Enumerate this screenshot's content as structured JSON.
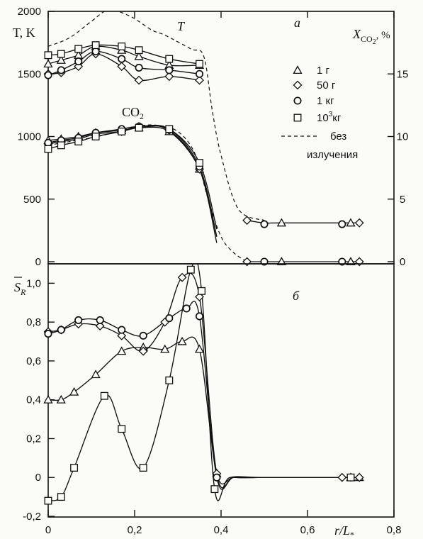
{
  "chart_data": [
    {
      "type": "line",
      "panel_label": "a",
      "x_range": [
        0,
        0.8
      ],
      "ylim_left": [
        0,
        2000
      ],
      "ylim_right": [
        0,
        20
      ],
      "ylabel_left": "T, K",
      "ylabel_right_main": "X",
      "ylabel_right_sub": "CO",
      "ylabel_right_subsub": "2",
      "ylabel_right_unit": ", %",
      "yticks_left": [
        0,
        500,
        1000,
        1500,
        2000
      ],
      "yticks_right": [
        0,
        5,
        10,
        15
      ],
      "curve_label_T": "T",
      "curve_label_CO2_main": "CO",
      "curve_label_CO2_sub": "2",
      "legend": [
        {
          "main": "1",
          "rest": " г",
          "sup": "",
          "after": "",
          "marker": "triangle"
        },
        {
          "main": "50",
          "rest": " г",
          "sup": "",
          "after": "",
          "marker": "diamond"
        },
        {
          "main": "1",
          "rest": " кг",
          "sup": "",
          "after": "",
          "marker": "circle"
        },
        {
          "main": "10",
          "rest": "",
          "sup": "3",
          "after": "кг",
          "marker": "square"
        },
        {
          "main": "без",
          "rest": "",
          "sup": "",
          "after": "",
          "marker": "dashed"
        },
        {
          "main": "излучения",
          "rest": "",
          "sup": "",
          "after": "",
          "marker": "none"
        }
      ],
      "series": [
        {
          "name": "T 1 г",
          "marker": "triangle",
          "axis": "left",
          "x": [
            0,
            0.03,
            0.07,
            0.11,
            0.17,
            0.21,
            0.28,
            0.35
          ],
          "y": [
            1580,
            1610,
            1650,
            1720,
            1690,
            1640,
            1570,
            1570
          ]
        },
        {
          "name": "T 50 г",
          "marker": "diamond",
          "axis": "left",
          "x": [
            0,
            0.03,
            0.07,
            0.11,
            0.17,
            0.21,
            0.28,
            0.35
          ],
          "y": [
            1500,
            1510,
            1560,
            1660,
            1560,
            1450,
            1480,
            1450
          ]
        },
        {
          "name": "T 1 кг",
          "marker": "circle",
          "axis": "left",
          "x": [
            0,
            0.03,
            0.07,
            0.11,
            0.17,
            0.21,
            0.28,
            0.35
          ],
          "y": [
            1490,
            1530,
            1600,
            1680,
            1620,
            1550,
            1530,
            1500
          ]
        },
        {
          "name": "T 10^3 кг",
          "marker": "square",
          "axis": "left",
          "x": [
            0,
            0.03,
            0.07,
            0.11,
            0.17,
            0.21,
            0.28,
            0.35
          ],
          "y": [
            1650,
            1660,
            1700,
            1730,
            1720,
            1690,
            1620,
            1580
          ]
        },
        {
          "name": "T без излучения",
          "marker": "dashed",
          "axis": "left",
          "x": [
            0,
            0.05,
            0.1,
            0.14,
            0.19,
            0.24,
            0.27,
            0.33,
            0.36,
            0.38,
            0.4,
            0.44,
            0.5
          ],
          "y": [
            1720,
            1790,
            1920,
            2010,
            1960,
            1850,
            1810,
            1700,
            1640,
            1200,
            850,
            420,
            330
          ]
        },
        {
          "name": "CO2 1 г",
          "marker": "triangle",
          "axis": "right",
          "x": [
            0,
            0.03,
            0.07,
            0.11,
            0.17,
            0.21,
            0.28,
            0.35,
            0.39
          ],
          "y": [
            9.7,
            9.8,
            10.0,
            10.3,
            10.5,
            10.7,
            10.4,
            7.4,
            2.0
          ]
        },
        {
          "name": "CO2 50 г",
          "marker": "diamond",
          "axis": "right",
          "x": [
            0,
            0.03,
            0.07,
            0.11,
            0.17,
            0.21,
            0.28,
            0.35,
            0.39
          ],
          "y": [
            9.4,
            9.6,
            9.8,
            10.2,
            10.4,
            10.8,
            10.5,
            7.4,
            1.5
          ]
        },
        {
          "name": "CO2 1 кг",
          "marker": "circle",
          "axis": "right",
          "x": [
            0,
            0.03,
            0.07,
            0.11,
            0.17,
            0.21,
            0.28,
            0.35,
            0.39
          ],
          "y": [
            9.5,
            9.7,
            9.9,
            10.3,
            10.6,
            10.8,
            10.6,
            7.6,
            2.0
          ]
        },
        {
          "name": "CO2 10^3 кг",
          "marker": "square",
          "axis": "right",
          "x": [
            0,
            0.03,
            0.07,
            0.11,
            0.17,
            0.21,
            0.28,
            0.35,
            0.39
          ],
          "y": [
            9.0,
            9.3,
            9.6,
            10.0,
            10.4,
            10.7,
            10.6,
            7.9,
            2.6
          ]
        },
        {
          "name": "CO2 без излучения",
          "marker": "dashed",
          "axis": "right",
          "x": [
            0,
            0.05,
            0.1,
            0.15,
            0.2,
            0.25,
            0.3,
            0.34,
            0.37,
            0.4,
            0.43,
            0.46
          ],
          "y": [
            9.3,
            9.6,
            9.9,
            10.3,
            10.8,
            10.9,
            10.4,
            8.6,
            5.0,
            2.0,
            0.7,
            0.0
          ]
        }
      ],
      "T_tail": {
        "x": [
          0.46,
          0.5,
          0.54,
          0.68,
          0.7,
          0.72
        ],
        "y": [
          330,
          310,
          310,
          310,
          310,
          310
        ]
      },
      "CO2_tail": {
        "x": [
          0.46,
          0.5,
          0.54,
          0.68,
          0.7,
          0.72
        ],
        "y": [
          0,
          0,
          0,
          0,
          0,
          0
        ]
      }
    },
    {
      "type": "line",
      "panel_label": "б",
      "x_range": [
        0,
        0.8
      ],
      "ylim": [
        -0.2,
        1.1
      ],
      "ylabel_main": "S",
      "ylabel_sub": "R",
      "yticks": [
        -0.2,
        0,
        0.2,
        0.4,
        0.6,
        0.8,
        1.0
      ],
      "ytick_labels": [
        "-0,2",
        "0",
        "0,2",
        "0,4",
        "0,6",
        "0,8",
        "1,0"
      ],
      "xticks": [
        0,
        0.2,
        0.4,
        0.6,
        0.8
      ],
      "xtick_labels": [
        "0",
        "0,2",
        "0,4",
        "0,6",
        "0,8"
      ],
      "xlabel_main": "r/L",
      "xlabel_sub": "*",
      "series": [
        {
          "name": "1 г",
          "marker": "triangle",
          "x": [
            0,
            0.03,
            0.06,
            0.11,
            0.17,
            0.22,
            0.27,
            0.31,
            0.35,
            0.39,
            0.43,
            0.5,
            0.54,
            0.7,
            0.72
          ],
          "y": [
            0.4,
            0.4,
            0.44,
            0.53,
            0.65,
            0.67,
            0.66,
            0.7,
            0.66,
            0.02,
            0.0,
            0.0,
            0.0,
            0.0,
            0.0
          ]
        },
        {
          "name": "50 г",
          "marker": "diamond",
          "x": [
            0,
            0.03,
            0.07,
            0.12,
            0.17,
            0.22,
            0.27,
            0.31,
            0.35,
            0.39,
            0.43,
            0.5,
            0.68,
            0.72
          ],
          "y": [
            0.75,
            0.76,
            0.79,
            0.78,
            0.73,
            0.65,
            0.8,
            1.03,
            0.93,
            0.02,
            0.0,
            0.0,
            0.0,
            0.0
          ]
        },
        {
          "name": "1 кг",
          "marker": "circle",
          "x": [
            0,
            0.03,
            0.07,
            0.12,
            0.17,
            0.22,
            0.28,
            0.32,
            0.35,
            0.39,
            0.43,
            0.5,
            0.7
          ],
          "y": [
            0.74,
            0.76,
            0.81,
            0.81,
            0.76,
            0.73,
            0.82,
            0.87,
            0.83,
            0.0,
            0.0,
            0.0,
            0.0
          ]
        },
        {
          "name": "10^3 кг",
          "marker": "square",
          "x": [
            0,
            0.03,
            0.06,
            0.13,
            0.17,
            0.22,
            0.28,
            0.33,
            0.355,
            0.385,
            0.42,
            0.5,
            0.7
          ],
          "y": [
            -0.12,
            -0.1,
            0.05,
            0.42,
            0.25,
            0.05,
            0.5,
            1.07,
            0.96,
            -0.06,
            0.0,
            0.0,
            0.0
          ]
        }
      ]
    }
  ]
}
